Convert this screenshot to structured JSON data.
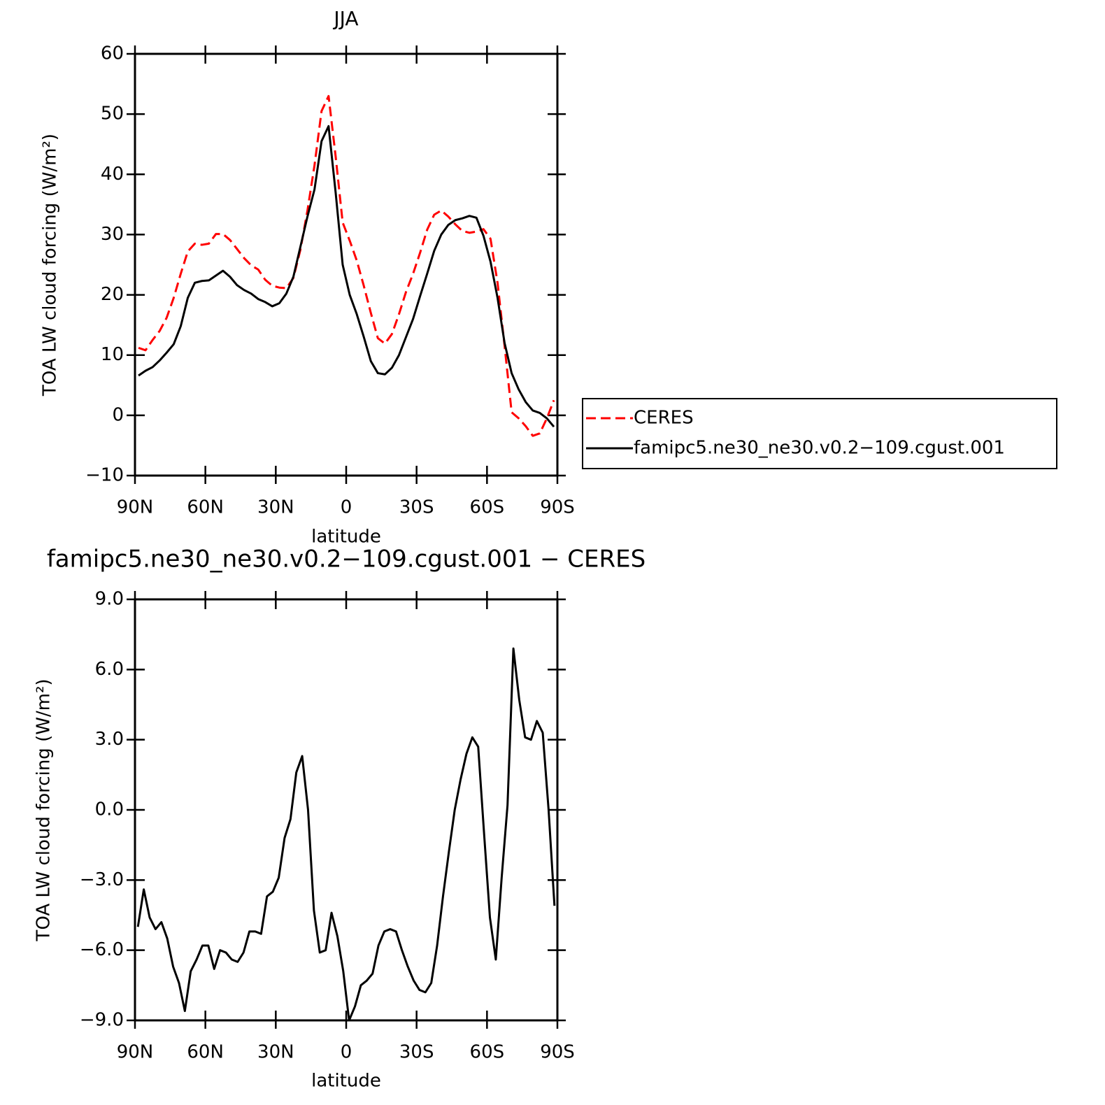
{
  "chart_data": [
    {
      "type": "line",
      "title": "JJA",
      "xlabel": "latitude",
      "ylabel": "TOA LW cloud forcing (W/m²)",
      "x": [
        88.5,
        85.5,
        82.5,
        79.5,
        76.5,
        73.5,
        70.5,
        67.5,
        64.5,
        61.5,
        58.5,
        55.5,
        52.5,
        49.5,
        46.5,
        43.5,
        40.5,
        37.5,
        34.5,
        31.5,
        28.5,
        25.5,
        22.5,
        19.5,
        16.5,
        13.5,
        10.5,
        7.5,
        4.5,
        1.5,
        -1.5,
        -4.5,
        -7.5,
        -10.5,
        -13.5,
        -16.5,
        -19.5,
        -22.5,
        -25.5,
        -28.5,
        -31.5,
        -34.5,
        -37.5,
        -40.5,
        -43.5,
        -46.5,
        -49.5,
        -52.5,
        -55.5,
        -58.5,
        -61.5,
        -64.5,
        -67.5,
        -70.5,
        -73.5,
        -76.5,
        -79.5,
        -82.5,
        -85.5,
        -88.5
      ],
      "xlim": [
        90,
        -90
      ],
      "xticks": [
        {
          "value": 90,
          "label": "90N"
        },
        {
          "value": 60,
          "label": "60N"
        },
        {
          "value": 30,
          "label": "30N"
        },
        0,
        {
          "value": -30,
          "label": "30S"
        },
        {
          "value": -60,
          "label": "60S"
        },
        {
          "value": -90,
          "label": "90S"
        }
      ],
      "ylim": [
        -10,
        60
      ],
      "yticks": [
        {
          "value": -10,
          "label": "−10"
        },
        0,
        10,
        20,
        30,
        40,
        50,
        60
      ],
      "legend": "outside-right",
      "series": [
        {
          "name": "CERES",
          "color": "#ff0000",
          "linestyle": "dashed",
          "values": [
            11.2,
            10.8,
            12.5,
            14.0,
            16.2,
            19.5,
            23.5,
            27.2,
            28.5,
            28.3,
            28.5,
            30.1,
            30.1,
            29.1,
            27.6,
            26.1,
            24.9,
            24.2,
            22.5,
            21.5,
            21.2,
            21.1,
            22.8,
            27.5,
            34.0,
            41.5,
            50.5,
            53.0,
            43.0,
            32.0,
            29.0,
            25.7,
            21.5,
            17.0,
            12.8,
            11.9,
            13.5,
            16.8,
            20.5,
            23.5,
            27.0,
            30.8,
            33.3,
            34.0,
            33.0,
            31.7,
            30.6,
            30.3,
            30.5,
            30.9,
            29.3,
            22.0,
            11.5,
            0.5,
            -0.5,
            -1.8,
            -3.4,
            -3.0,
            -0.5,
            2.5
          ]
        },
        {
          "name": "famipc5.ne30_ne30.v0.2−109.cgust.001",
          "color": "#000000",
          "linestyle": "solid",
          "values": [
            6.6,
            7.4,
            8.0,
            9.1,
            10.4,
            11.8,
            14.8,
            19.5,
            22.0,
            22.3,
            22.4,
            23.2,
            24.0,
            23.0,
            21.6,
            20.8,
            20.2,
            19.3,
            18.8,
            18.1,
            18.6,
            20.2,
            23.0,
            28.0,
            33.0,
            37.5,
            45.5,
            48.0,
            37.0,
            25.0,
            20.0,
            16.8,
            13.0,
            9.0,
            7.0,
            6.8,
            7.9,
            10.0,
            13.0,
            16.0,
            19.8,
            23.5,
            27.3,
            30.0,
            31.6,
            32.4,
            32.7,
            33.1,
            32.8,
            29.8,
            25.5,
            19.5,
            12.0,
            7.0,
            4.3,
            2.2,
            0.8,
            0.4,
            -0.5,
            -1.9
          ]
        }
      ]
    },
    {
      "type": "line",
      "title": "famipc5.ne30_ne30.v0.2−109.cgust.001  −  CERES",
      "xlabel": "latitude",
      "ylabel": "TOA LW cloud forcing (W/m²)",
      "x": [
        88.75,
        86.25,
        83.75,
        81.25,
        78.75,
        76.25,
        73.75,
        71.25,
        68.75,
        66.25,
        63.75,
        61.25,
        58.75,
        56.25,
        53.75,
        51.25,
        48.75,
        46.25,
        43.75,
        41.25,
        38.75,
        36.25,
        33.75,
        31.25,
        28.75,
        26.25,
        23.75,
        21.25,
        18.75,
        16.25,
        13.75,
        11.25,
        8.75,
        6.25,
        3.75,
        1.25,
        -1.25,
        -3.75,
        -6.25,
        -8.75,
        -11.25,
        -13.75,
        -16.25,
        -18.75,
        -21.25,
        -23.75,
        -26.25,
        -28.75,
        -31.25,
        -33.75,
        -36.25,
        -38.75,
        -41.25,
        -43.75,
        -46.25,
        -48.75,
        -51.25,
        -53.75,
        -56.25,
        -58.75,
        -61.25,
        -63.75,
        -66.25,
        -68.75,
        -71.25,
        -73.75,
        -76.25,
        -78.75,
        -81.25,
        -83.75,
        -86.25,
        -88.75
      ],
      "xlim": [
        90,
        -90
      ],
      "xticks": [
        {
          "value": 90,
          "label": "90N"
        },
        {
          "value": 60,
          "label": "60N"
        },
        {
          "value": 30,
          "label": "30N"
        },
        0,
        {
          "value": -30,
          "label": "30S"
        },
        {
          "value": -60,
          "label": "60S"
        },
        {
          "value": -90,
          "label": "90S"
        }
      ],
      "ylim": [
        -9,
        9
      ],
      "yticks": [
        {
          "value": -9,
          "label": "−9.0"
        },
        {
          "value": -6,
          "label": "−6.0"
        },
        {
          "value": -3,
          "label": "−3.0"
        },
        {
          "value": 0,
          "label": "0.0"
        },
        {
          "value": 3,
          "label": "3.0"
        },
        {
          "value": 6,
          "label": "6.0"
        },
        {
          "value": 9,
          "label": "9.0"
        }
      ],
      "series": [
        {
          "color": "#000000",
          "linestyle": "solid",
          "values": [
            -5.0,
            -3.4,
            -4.6,
            -5.1,
            -4.8,
            -5.5,
            -6.7,
            -7.4,
            -8.6,
            -6.9,
            -6.4,
            -5.8,
            -5.8,
            -6.8,
            -6.0,
            -6.1,
            -6.4,
            -6.5,
            -6.1,
            -5.2,
            -5.2,
            -5.3,
            -3.7,
            -3.5,
            -2.9,
            -1.2,
            -0.4,
            1.6,
            2.3,
            0.0,
            -4.3,
            -6.1,
            -6.0,
            -4.4,
            -5.4,
            -6.9,
            -9.0,
            -8.4,
            -7.5,
            -7.3,
            -7.0,
            -5.8,
            -5.2,
            -5.1,
            -5.2,
            -6.0,
            -6.7,
            -7.3,
            -7.7,
            -7.8,
            -7.4,
            -5.8,
            -3.7,
            -1.8,
            0.0,
            1.3,
            2.4,
            3.1,
            2.7,
            -1.0,
            -4.6,
            -6.4,
            -2.9,
            0.2,
            6.9,
            4.7,
            3.1,
            3.0,
            3.8,
            3.3,
            0.0,
            -4.1
          ]
        }
      ]
    }
  ]
}
